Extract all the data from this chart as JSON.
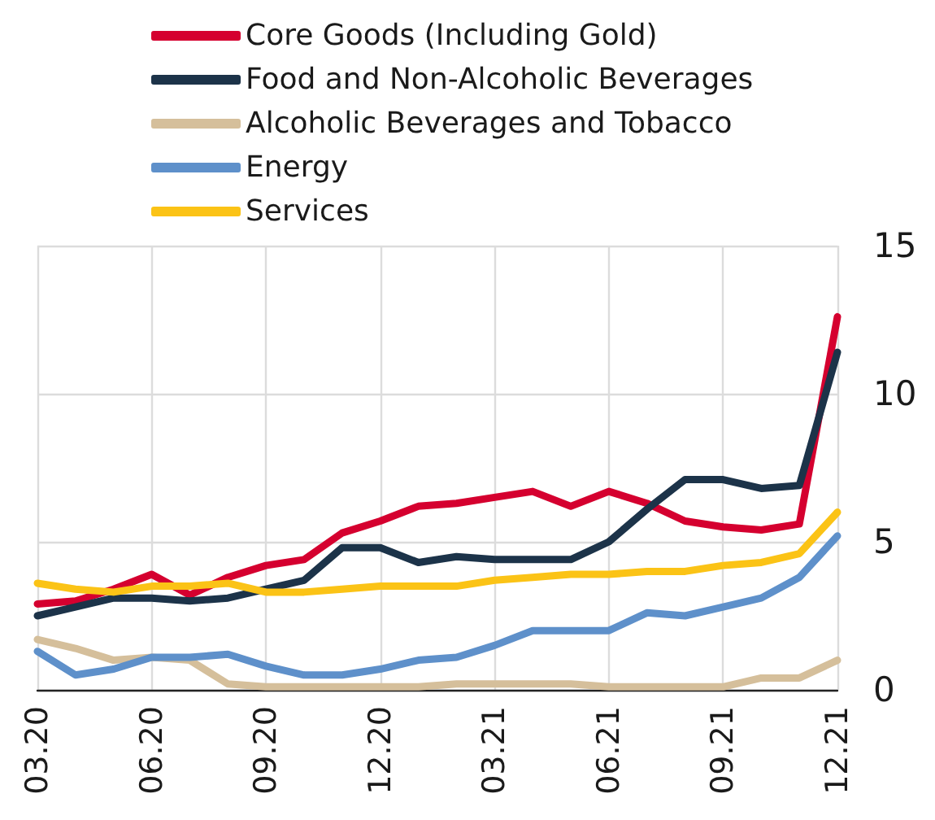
{
  "chart_data": {
    "type": "line",
    "categories": [
      "03.20",
      null,
      null,
      "06.20",
      null,
      null,
      "09.20",
      null,
      null,
      "12.20",
      null,
      null,
      "03.21",
      null,
      null,
      "06.21",
      null,
      null,
      "09.21",
      null,
      null,
      "12.21"
    ],
    "series": [
      {
        "name": "Core Goods (Including Gold)",
        "color": "#d5002f",
        "values": [
          2.9,
          3.0,
          3.4,
          3.9,
          3.2,
          3.8,
          4.2,
          4.4,
          5.3,
          5.7,
          6.2,
          6.3,
          6.5,
          6.7,
          6.2,
          6.7,
          6.3,
          5.7,
          5.5,
          5.4,
          5.6,
          12.6
        ]
      },
      {
        "name": "Food and Non-Alcoholic Beverages",
        "color": "#1c3349",
        "values": [
          2.5,
          2.8,
          3.1,
          3.1,
          3.0,
          3.1,
          3.4,
          3.7,
          4.8,
          4.8,
          4.3,
          4.5,
          4.4,
          4.4,
          4.4,
          5.0,
          6.1,
          7.1,
          7.1,
          6.8,
          6.9,
          11.4
        ]
      },
      {
        "name": "Alcoholic Beverages and Tobacco",
        "color": "#d5bf9b",
        "values": [
          1.7,
          1.4,
          1.0,
          1.1,
          1.0,
          0.2,
          0.1,
          0.1,
          0.1,
          0.1,
          0.1,
          0.2,
          0.2,
          0.2,
          0.2,
          0.1,
          0.1,
          0.1,
          0.1,
          0.4,
          0.4,
          1.0
        ]
      },
      {
        "name": "Energy",
        "color": "#5e90ca",
        "values": [
          1.3,
          0.5,
          0.7,
          1.1,
          1.1,
          1.2,
          0.8,
          0.5,
          0.5,
          0.7,
          1.0,
          1.1,
          1.5,
          2.0,
          2.0,
          2.0,
          2.6,
          2.5,
          2.8,
          3.1,
          3.8,
          5.2
        ]
      },
      {
        "name": "Services",
        "color": "#fbc316",
        "values": [
          3.6,
          3.4,
          3.3,
          3.5,
          3.5,
          3.6,
          3.3,
          3.3,
          3.4,
          3.5,
          3.5,
          3.5,
          3.7,
          3.8,
          3.9,
          3.9,
          4.0,
          4.0,
          4.2,
          4.3,
          4.6,
          6.0
        ]
      }
    ],
    "ylim": [
      0,
      15
    ],
    "yticks": [
      0,
      5,
      10,
      15
    ],
    "grid": true,
    "legend": "top",
    "marker": "none",
    "line_style": "solid"
  }
}
